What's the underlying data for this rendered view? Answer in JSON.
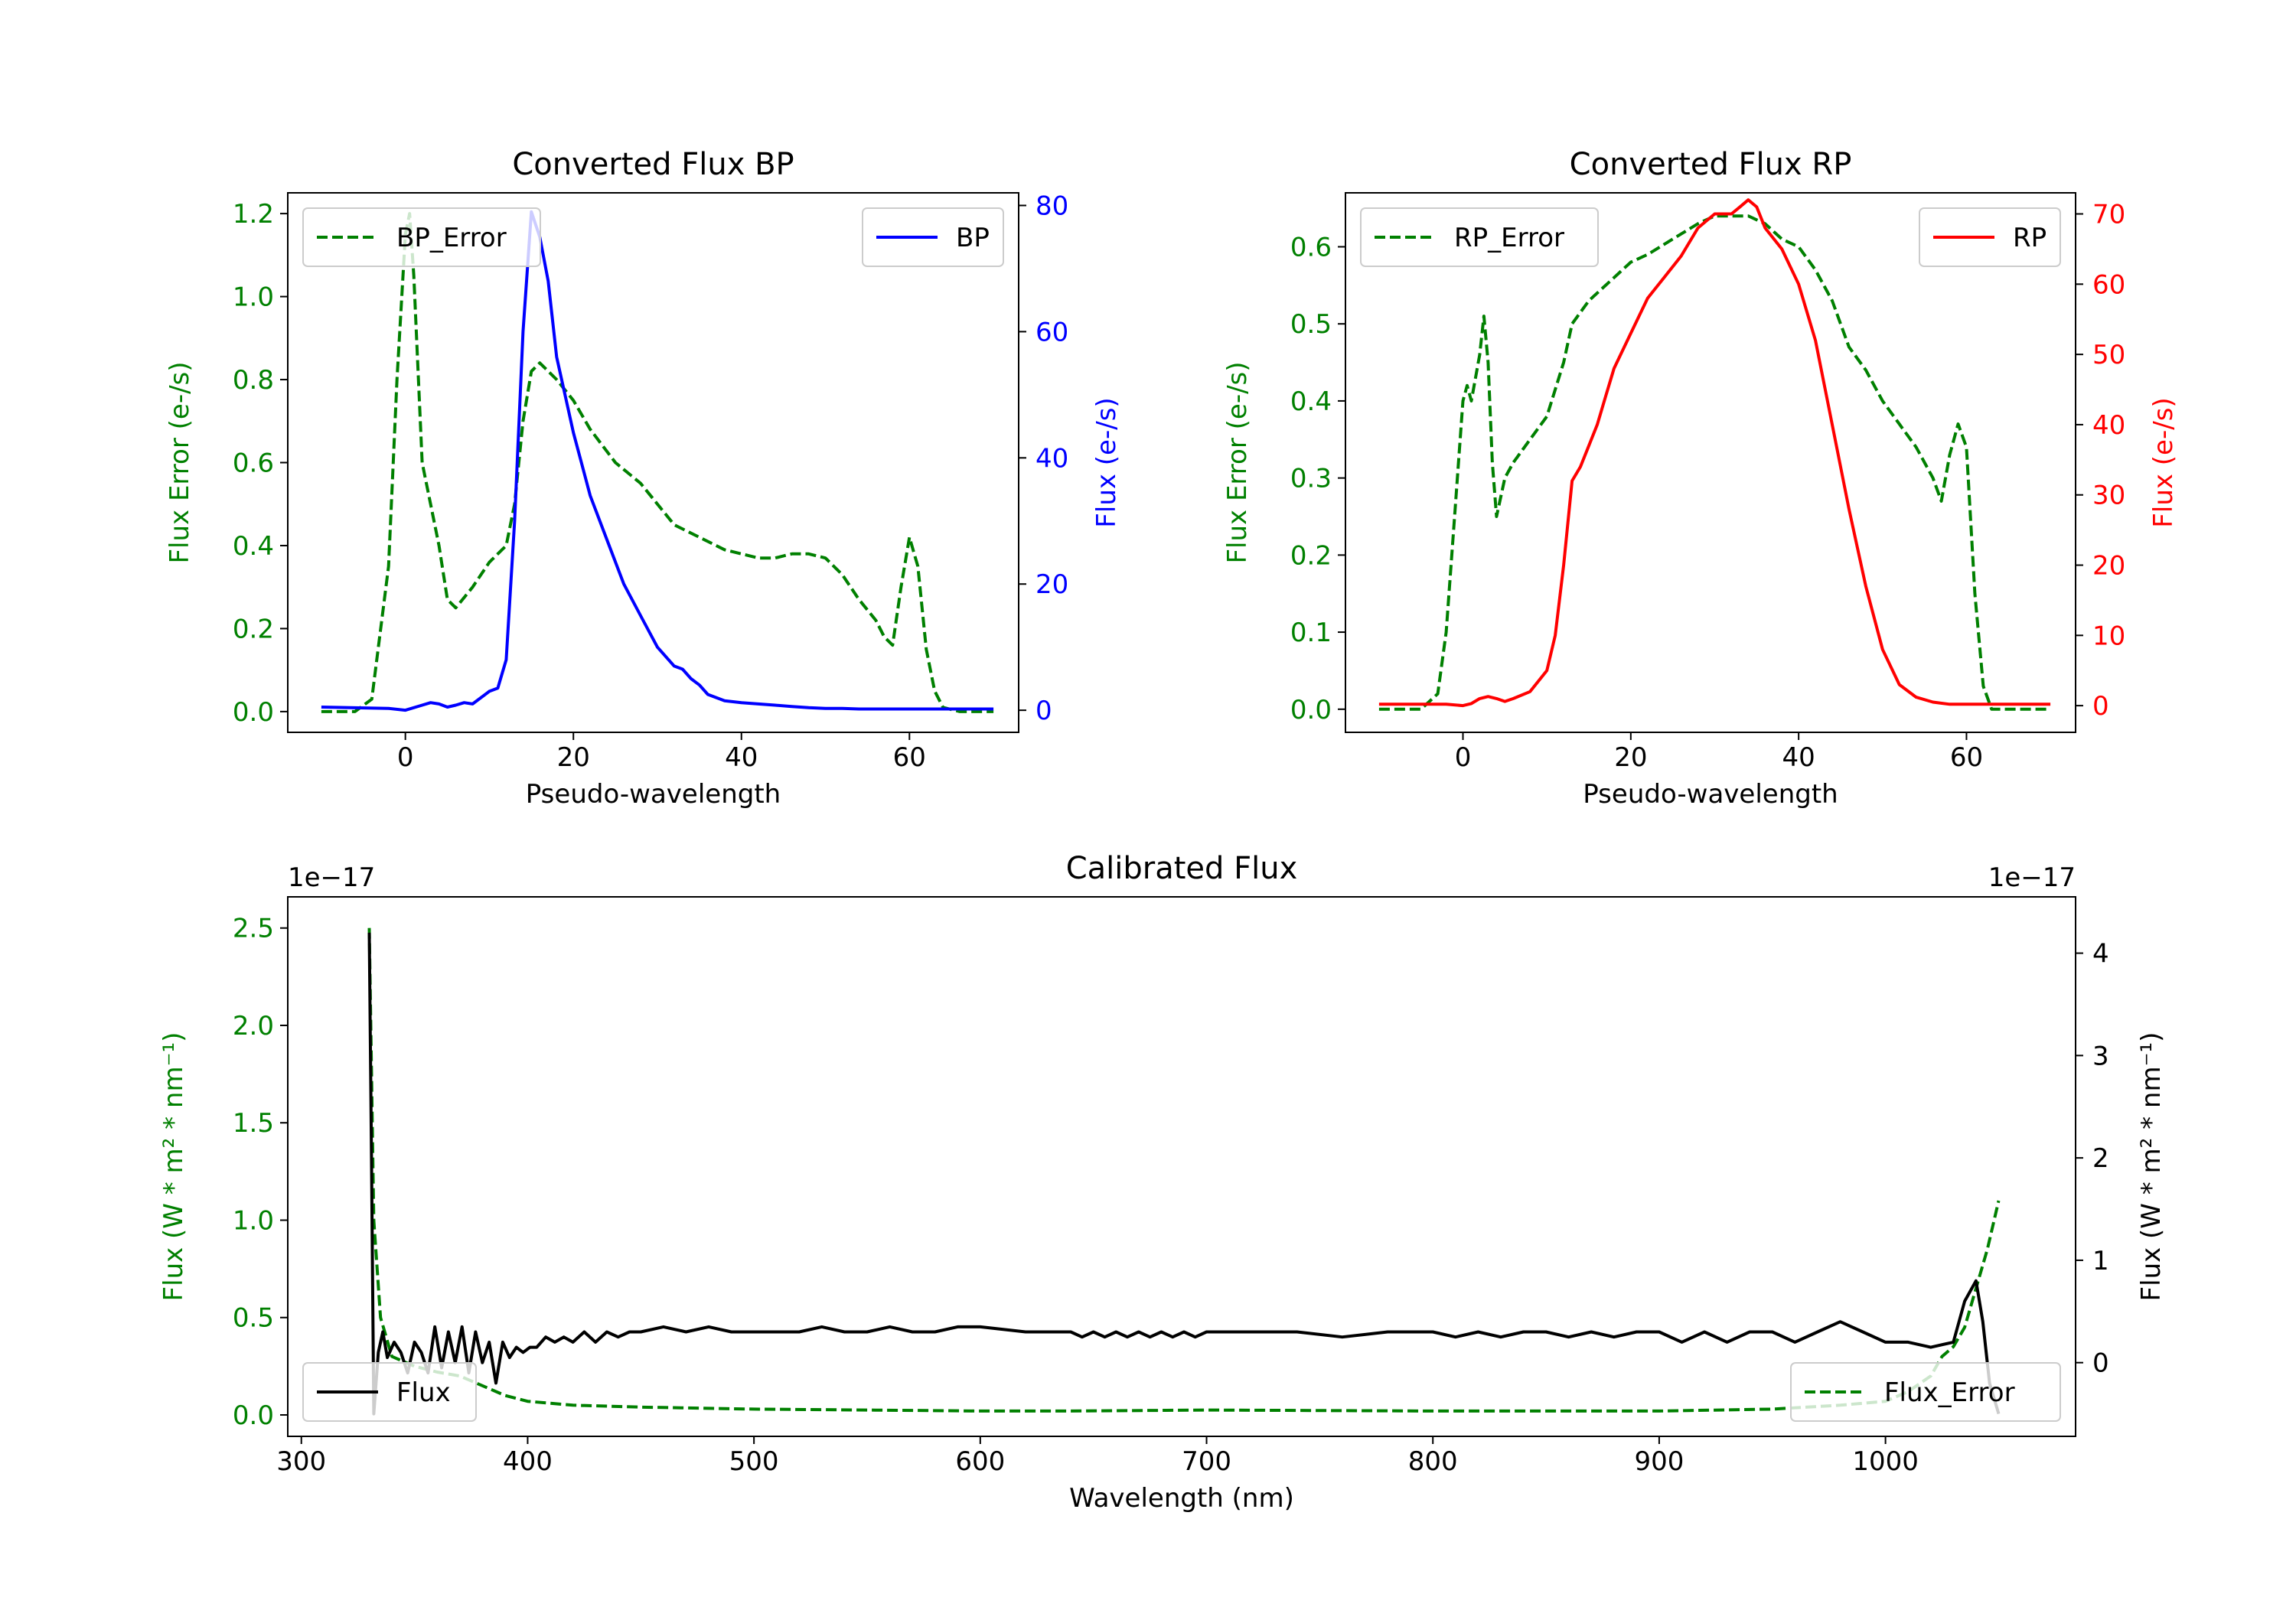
{
  "chart_data": [
    {
      "type": "line",
      "title": "Converted Flux BP",
      "xlabel": "Pseudo-wavelength",
      "ylabel_left": "Flux Error (e-/s)",
      "ylabel_right": "Flux (e-/s)",
      "xlim": [
        -14,
        73
      ],
      "ylim_left": [
        -0.05,
        1.25
      ],
      "ylim_right": [
        -3.5,
        82
      ],
      "xticks": [
        0,
        20,
        40,
        60
      ],
      "yticks_left": [
        0.0,
        0.2,
        0.4,
        0.6,
        0.8,
        1.0,
        1.2
      ],
      "yticks_right": [
        0,
        20,
        40,
        60,
        80
      ],
      "left_axis_color": "#008000",
      "right_axis_color": "#0000ff",
      "legend_left": {
        "label": "BP_Error",
        "placement": "upper left"
      },
      "legend_right": {
        "label": "BP",
        "placement": "upper right"
      },
      "series": [
        {
          "name": "BP_Error",
          "axis": "left",
          "color": "#008000",
          "style": "dashed",
          "x": [
            -10,
            -6,
            -4,
            -2,
            -1,
            0,
            0.5,
            1,
            2,
            3,
            4,
            5,
            6,
            8,
            10,
            12,
            13,
            14,
            15,
            16,
            18,
            20,
            22,
            25,
            28,
            30,
            32,
            35,
            38,
            40,
            42,
            44,
            46,
            48,
            50,
            52,
            54,
            56,
            57,
            58,
            59,
            60,
            61,
            62,
            63,
            64,
            66,
            70
          ],
          "y": [
            0.0,
            0.0,
            0.03,
            0.35,
            0.8,
            1.15,
            1.2,
            1.05,
            0.6,
            0.5,
            0.4,
            0.27,
            0.25,
            0.3,
            0.36,
            0.4,
            0.5,
            0.7,
            0.82,
            0.84,
            0.8,
            0.75,
            0.68,
            0.6,
            0.55,
            0.5,
            0.45,
            0.42,
            0.39,
            0.38,
            0.37,
            0.37,
            0.38,
            0.38,
            0.37,
            0.33,
            0.27,
            0.22,
            0.18,
            0.16,
            0.3,
            0.42,
            0.35,
            0.15,
            0.05,
            0.01,
            0.0,
            0.0
          ]
        },
        {
          "name": "BP",
          "axis": "right",
          "color": "#0000ff",
          "style": "solid",
          "x": [
            -10,
            -2,
            0,
            2,
            3,
            4,
            5,
            6,
            7,
            8,
            10,
            11,
            12,
            13,
            14,
            15,
            16,
            17,
            18,
            20,
            22,
            24,
            26,
            28,
            30,
            32,
            33,
            34,
            35,
            36,
            38,
            40,
            42,
            44,
            46,
            48,
            50,
            52,
            54,
            56,
            60,
            70
          ],
          "y": [
            0.5,
            0.3,
            0.0,
            0.8,
            1.2,
            1.0,
            0.5,
            0.8,
            1.2,
            1.0,
            3.0,
            3.5,
            8.0,
            30.0,
            60.0,
            79.0,
            75.0,
            68.0,
            56.0,
            44.0,
            34.0,
            27.0,
            20.0,
            15.0,
            10.0,
            7.0,
            6.5,
            5.0,
            4.0,
            2.5,
            1.5,
            1.2,
            1.0,
            0.8,
            0.6,
            0.4,
            0.3,
            0.3,
            0.2,
            0.2,
            0.2,
            0.2
          ]
        }
      ]
    },
    {
      "type": "line",
      "title": "Converted Flux RP",
      "xlabel": "Pseudo-wavelength",
      "ylabel_left": "Flux Error (e-/s)",
      "ylabel_right": "Flux (e-/s)",
      "xlim": [
        -14,
        73
      ],
      "ylim_left": [
        -0.03,
        0.67
      ],
      "ylim_right": [
        -3.8,
        73
      ],
      "xticks": [
        0,
        20,
        40,
        60
      ],
      "yticks_left": [
        0.0,
        0.1,
        0.2,
        0.3,
        0.4,
        0.5,
        0.6
      ],
      "yticks_right": [
        0,
        10,
        20,
        30,
        40,
        50,
        60,
        70
      ],
      "left_axis_color": "#008000",
      "right_axis_color": "#ff0000",
      "legend_left": {
        "label": "RP_Error",
        "placement": "upper left"
      },
      "legend_right": {
        "label": "RP",
        "placement": "upper right"
      },
      "series": [
        {
          "name": "RP_Error",
          "axis": "left",
          "color": "#008000",
          "style": "dashed",
          "x": [
            -10,
            -5,
            -3,
            -2,
            -1,
            0,
            0.5,
            1,
            2,
            2.5,
            3,
            3.5,
            4,
            5,
            6,
            8,
            10,
            12,
            13,
            15,
            18,
            20,
            22,
            25,
            28,
            30,
            32,
            34,
            36,
            38,
            40,
            42,
            44,
            46,
            48,
            50,
            52,
            54,
            56,
            57,
            58,
            59,
            60,
            61,
            62,
            63,
            65,
            70
          ],
          "y": [
            0.0,
            0.0,
            0.02,
            0.1,
            0.25,
            0.4,
            0.42,
            0.4,
            0.46,
            0.51,
            0.45,
            0.32,
            0.25,
            0.3,
            0.32,
            0.35,
            0.38,
            0.45,
            0.5,
            0.53,
            0.56,
            0.58,
            0.59,
            0.61,
            0.63,
            0.64,
            0.64,
            0.64,
            0.63,
            0.61,
            0.6,
            0.57,
            0.53,
            0.47,
            0.44,
            0.4,
            0.37,
            0.34,
            0.3,
            0.27,
            0.33,
            0.37,
            0.34,
            0.15,
            0.03,
            0.0,
            0.0,
            0.0
          ]
        },
        {
          "name": "RP",
          "axis": "right",
          "color": "#ff0000",
          "style": "solid",
          "x": [
            -10,
            -2,
            0,
            1,
            2,
            3,
            4,
            5,
            6,
            8,
            10,
            11,
            12,
            13,
            14,
            15,
            16,
            17,
            18,
            20,
            22,
            24,
            26,
            28,
            30,
            32,
            33,
            34,
            35,
            36,
            38,
            40,
            42,
            44,
            46,
            48,
            50,
            52,
            54,
            56,
            58,
            60,
            70
          ],
          "y": [
            0.2,
            0.2,
            0.0,
            0.3,
            1.0,
            1.3,
            1.0,
            0.6,
            1.0,
            2.0,
            5.0,
            10.0,
            20.0,
            32.0,
            34.0,
            37.0,
            40.0,
            44.0,
            48.0,
            53.0,
            58.0,
            61.0,
            64.0,
            68.0,
            70.0,
            70.0,
            71.0,
            72.0,
            71.0,
            68.0,
            65.0,
            60.0,
            52.0,
            40.0,
            28.0,
            17.0,
            8.0,
            3.0,
            1.2,
            0.5,
            0.2,
            0.2,
            0.2
          ]
        }
      ]
    },
    {
      "type": "line",
      "title": "Calibrated Flux",
      "xlabel": "Wavelength (nm)",
      "ylabel_left": "Flux (W * m² * nm⁻¹)",
      "ylabel_right": "Flux (W * m² * nm⁻¹)",
      "offset_left": "1e−17",
      "offset_right": "1e−17",
      "xlim": [
        294,
        1084
      ],
      "ylim_left": [
        -0.11,
        2.66
      ],
      "ylim_right": [
        -0.72,
        4.55
      ],
      "xticks": [
        300,
        400,
        500,
        600,
        700,
        800,
        900,
        1000
      ],
      "yticks_left": [
        0.0,
        0.5,
        1.0,
        1.5,
        2.0,
        2.5
      ],
      "yticks_right": [
        0,
        1,
        2,
        3,
        4
      ],
      "left_axis_color": "#008000",
      "right_axis_color": "#000000",
      "legend_left": {
        "label": "Flux",
        "placement": "lower left"
      },
      "legend_right": {
        "label": "Flux_Error",
        "placement": "lower right"
      },
      "series": [
        {
          "name": "Flux_Error",
          "axis": "left",
          "color": "#008000",
          "style": "dashed",
          "x": [
            330,
            332,
            335,
            340,
            350,
            360,
            370,
            380,
            390,
            400,
            420,
            450,
            500,
            550,
            600,
            640,
            700,
            800,
            900,
            950,
            980,
            1000,
            1010,
            1020,
            1025,
            1030,
            1035,
            1040,
            1045,
            1050
          ],
          "y": [
            2.5,
            1.0,
            0.5,
            0.3,
            0.25,
            0.22,
            0.2,
            0.15,
            0.1,
            0.07,
            0.05,
            0.04,
            0.03,
            0.025,
            0.02,
            0.02,
            0.025,
            0.02,
            0.02,
            0.03,
            0.05,
            0.07,
            0.12,
            0.2,
            0.3,
            0.35,
            0.45,
            0.65,
            0.85,
            1.1
          ]
        },
        {
          "name": "Flux",
          "axis": "right",
          "color": "#000000",
          "style": "solid",
          "x": [
            330,
            331,
            332,
            334,
            336,
            338,
            341,
            344,
            347,
            350,
            353,
            356,
            359,
            362,
            365,
            368,
            371,
            374,
            377,
            380,
            383,
            386,
            389,
            392,
            395,
            398,
            401,
            404,
            408,
            412,
            416,
            420,
            425,
            430,
            435,
            440,
            445,
            450,
            460,
            470,
            480,
            490,
            500,
            510,
            520,
            530,
            540,
            550,
            560,
            570,
            580,
            590,
            600,
            620,
            640,
            645,
            650,
            655,
            660,
            665,
            670,
            675,
            680,
            685,
            690,
            695,
            700,
            720,
            740,
            760,
            780,
            800,
            810,
            820,
            830,
            840,
            850,
            860,
            870,
            880,
            890,
            900,
            910,
            920,
            930,
            940,
            950,
            960,
            970,
            980,
            990,
            1000,
            1010,
            1020,
            1030,
            1035,
            1040,
            1043,
            1046,
            1050
          ],
          "y": [
            4.2,
            2.0,
            -0.5,
            0.1,
            0.3,
            0.05,
            0.2,
            0.1,
            -0.1,
            0.2,
            0.1,
            -0.1,
            0.35,
            -0.05,
            0.3,
            0.0,
            0.35,
            -0.1,
            0.3,
            0.0,
            0.2,
            -0.2,
            0.2,
            0.05,
            0.15,
            0.1,
            0.15,
            0.15,
            0.25,
            0.2,
            0.25,
            0.2,
            0.3,
            0.2,
            0.3,
            0.25,
            0.3,
            0.3,
            0.35,
            0.3,
            0.35,
            0.3,
            0.3,
            0.3,
            0.3,
            0.35,
            0.3,
            0.3,
            0.35,
            0.3,
            0.3,
            0.35,
            0.35,
            0.3,
            0.3,
            0.25,
            0.3,
            0.25,
            0.3,
            0.25,
            0.3,
            0.25,
            0.3,
            0.25,
            0.3,
            0.25,
            0.3,
            0.3,
            0.3,
            0.25,
            0.3,
            0.3,
            0.25,
            0.3,
            0.25,
            0.3,
            0.3,
            0.25,
            0.3,
            0.25,
            0.3,
            0.3,
            0.2,
            0.3,
            0.2,
            0.3,
            0.3,
            0.2,
            0.3,
            0.4,
            0.3,
            0.2,
            0.2,
            0.15,
            0.2,
            0.6,
            0.8,
            0.4,
            -0.2,
            -0.5
          ]
        }
      ]
    }
  ]
}
